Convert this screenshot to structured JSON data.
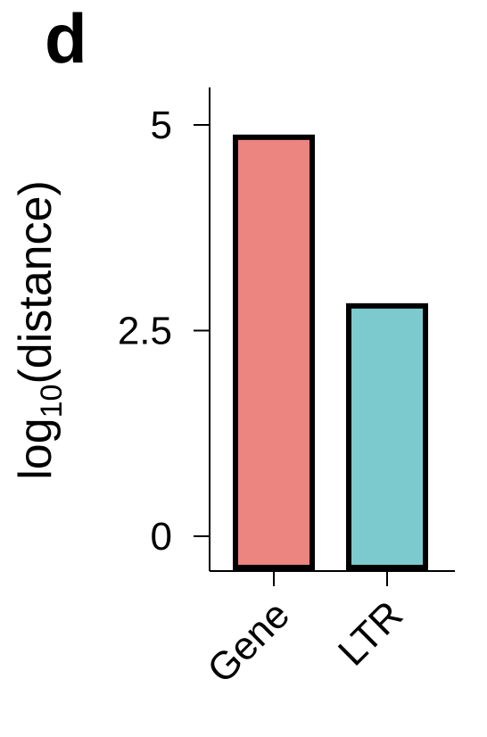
{
  "panel_label": "d",
  "chart_data": {
    "type": "bar",
    "categories": [
      "Gene",
      "LTR"
    ],
    "values": [
      4.85,
      2.8
    ],
    "colors": [
      "#EC8480",
      "#7CCACE"
    ],
    "outline_color": "#000000",
    "ylabel": {
      "base": "log",
      "subscript": "10",
      "rest": "(distance)"
    },
    "yticks": [
      0,
      2.5,
      5
    ],
    "ytick_labels": [
      "0",
      "2.5",
      "5"
    ],
    "ylim": [
      -0.42,
      5.45
    ],
    "grid": false
  }
}
